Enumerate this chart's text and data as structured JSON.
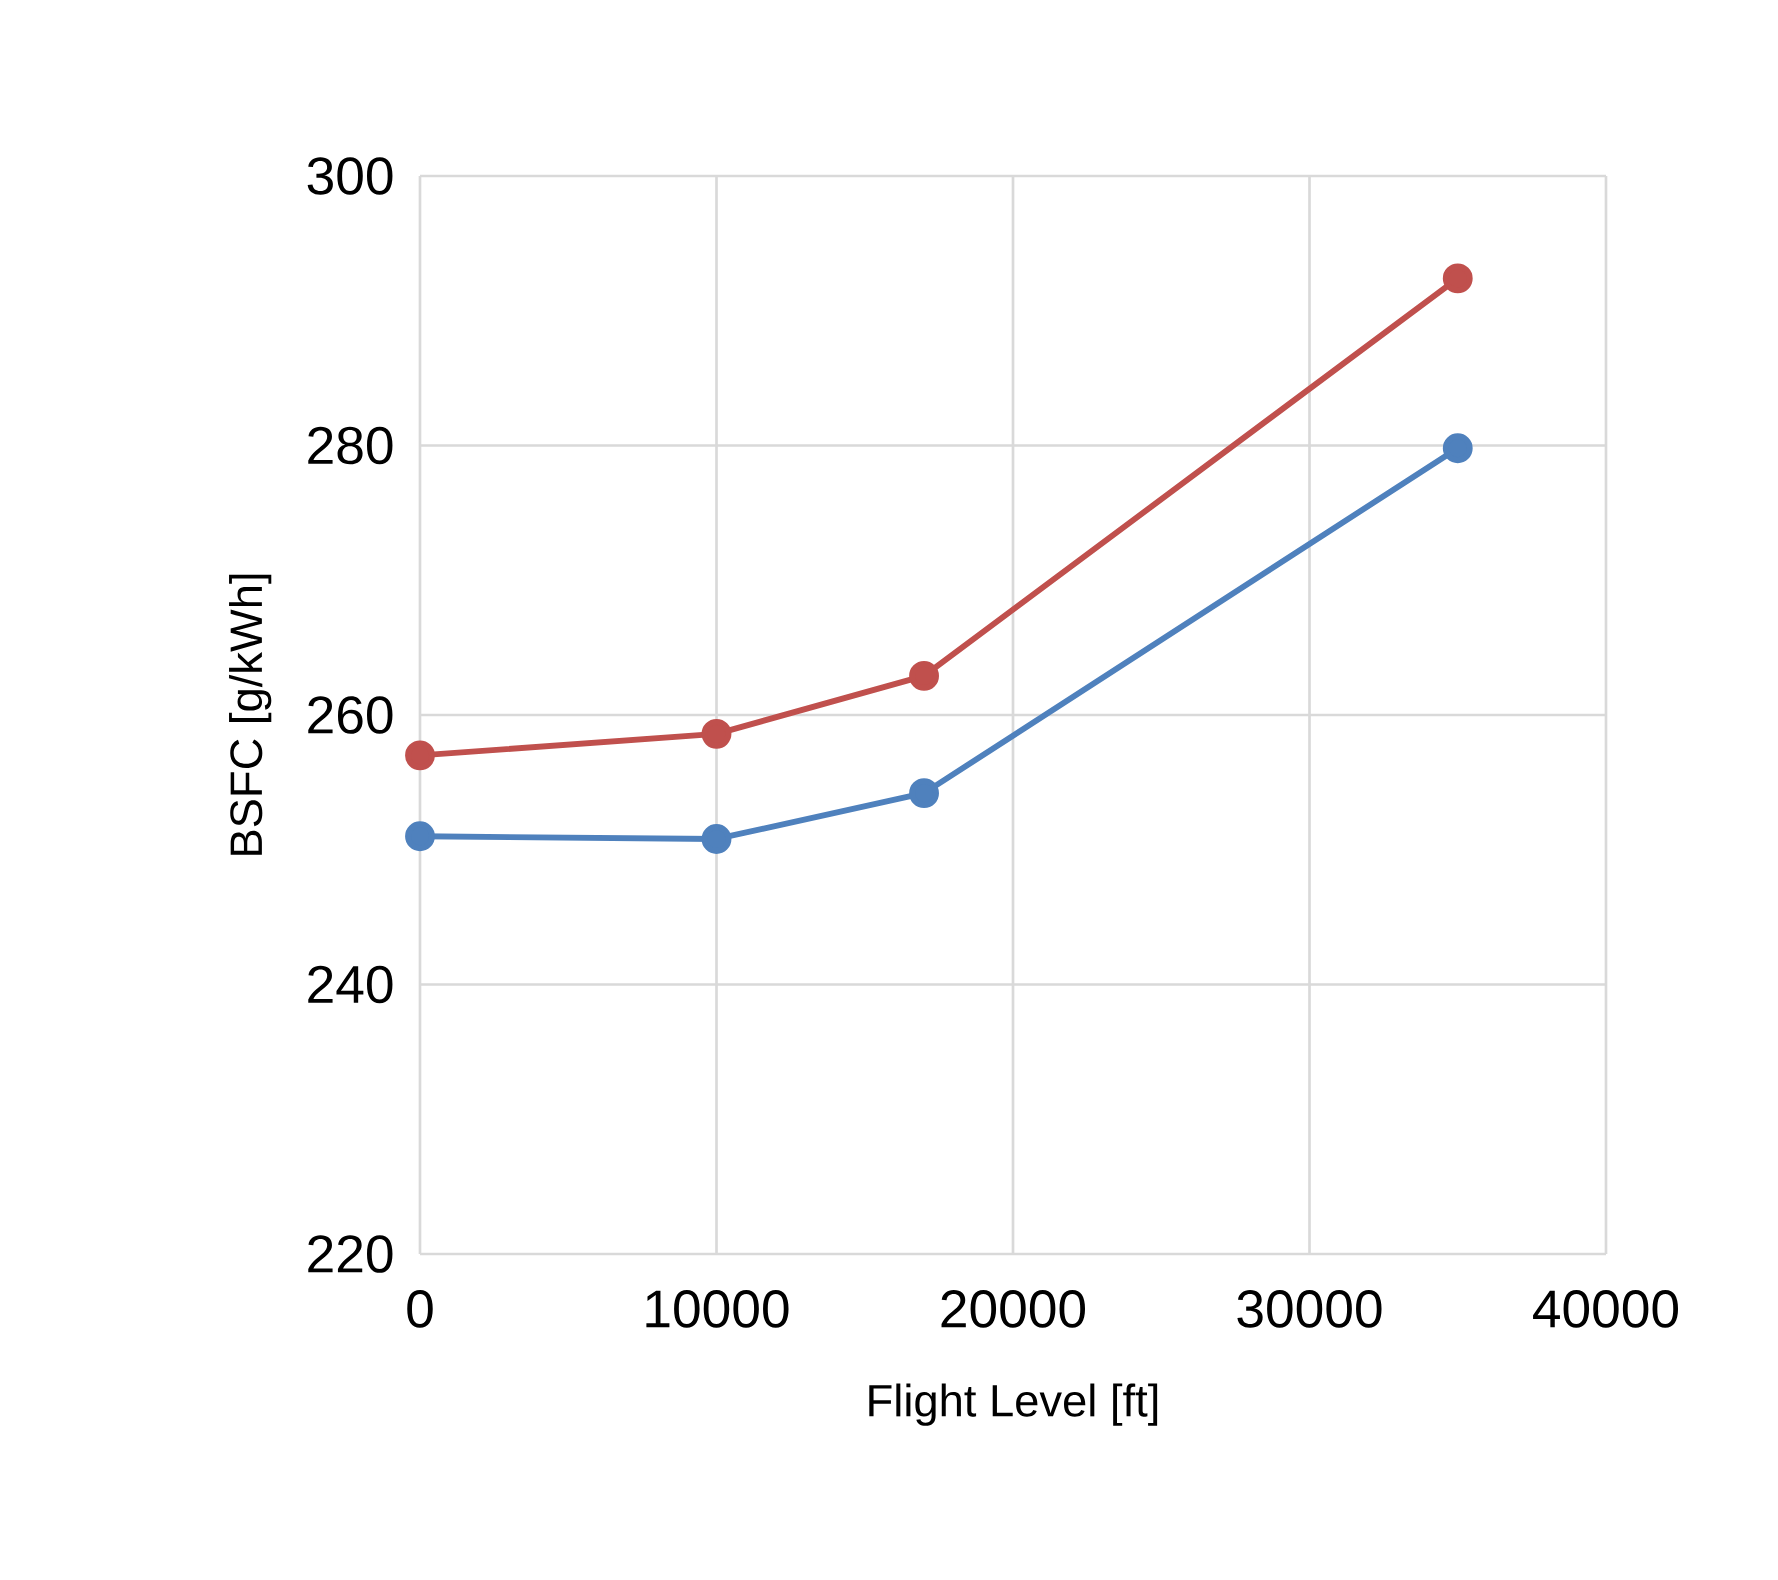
{
  "chart_data": {
    "type": "line",
    "xlabel": "Flight Level [ft]",
    "ylabel": "BSFC [g/kWh]",
    "x": [
      0,
      10000,
      17000,
      35000
    ],
    "series": [
      {
        "color": "#c0504d",
        "values": [
          257,
          258.6,
          262.9,
          292.4
        ]
      },
      {
        "color": "#4f81bd",
        "values": [
          251,
          250.8,
          254.2,
          279.8
        ]
      }
    ],
    "xlim": [
      0,
      40000
    ],
    "xticks": [
      0,
      10000,
      20000,
      30000,
      40000
    ],
    "ylim": [
      220,
      300
    ],
    "yticks": [
      220,
      240,
      260,
      280,
      300
    ],
    "grid": true,
    "marker": "circle",
    "line_style": "solid"
  }
}
